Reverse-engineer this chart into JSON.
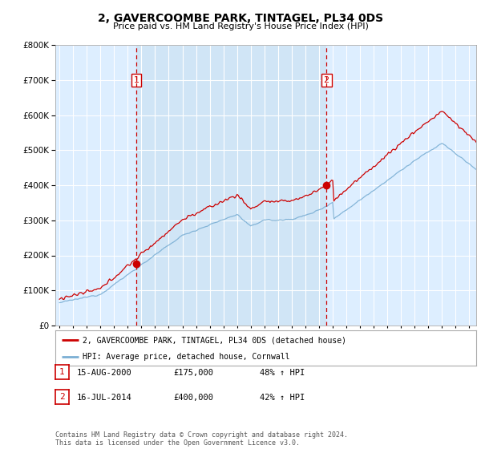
{
  "title": "2, GAVERCOOMBE PARK, TINTAGEL, PL34 0DS",
  "subtitle": "Price paid vs. HM Land Registry's House Price Index (HPI)",
  "red_label": "2, GAVERCOOMBE PARK, TINTAGEL, PL34 0DS (detached house)",
  "blue_label": "HPI: Average price, detached house, Cornwall",
  "red_color": "#cc0000",
  "blue_color": "#7bafd4",
  "bg_color": "#ddeeff",
  "highlight_color": "#c8dff0",
  "grid_color": "#ffffff",
  "sale1_date": 2000.625,
  "sale1_price": 175000,
  "sale2_date": 2014.54,
  "sale2_price": 400000,
  "footer": "Contains HM Land Registry data © Crown copyright and database right 2024.\nThis data is licensed under the Open Government Licence v3.0.",
  "table_row1": [
    "1",
    "15-AUG-2000",
    "£175,000",
    "48% ↑ HPI"
  ],
  "table_row2": [
    "2",
    "16-JUL-2014",
    "£400,000",
    "42% ↑ HPI"
  ],
  "ylim": [
    0,
    800000
  ],
  "xlim_start": 1994.7,
  "xlim_end": 2025.5
}
